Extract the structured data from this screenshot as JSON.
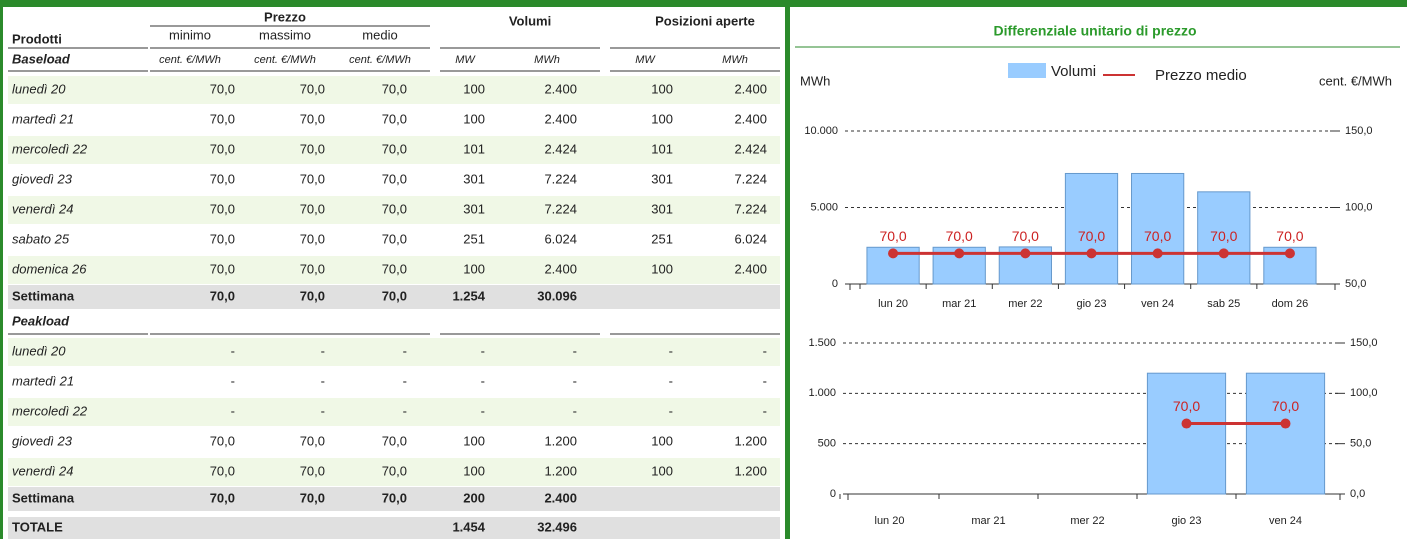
{
  "panel_title": "Differenziale unitario di prezzo",
  "table": {
    "headers": {
      "products": "Prodotti",
      "price": "Prezzo",
      "min": "minimo",
      "max": "massimo",
      "avg": "medio",
      "volumes": "Volumi",
      "open": "Posizioni aperte"
    },
    "units": [
      "cent. €/MWh",
      "cent. €/MWh",
      "cent. €/MWh",
      "MW",
      "MWh",
      "MW",
      "MWh"
    ],
    "sections": [
      {
        "name": "Baseload",
        "rows": [
          [
            "lunedì 20",
            "70,0",
            "70,0",
            "70,0",
            "100",
            "2.400",
            "100",
            "2.400"
          ],
          [
            "martedì 21",
            "70,0",
            "70,0",
            "70,0",
            "100",
            "2.400",
            "100",
            "2.400"
          ],
          [
            "mercoledì 22",
            "70,0",
            "70,0",
            "70,0",
            "101",
            "2.424",
            "101",
            "2.424"
          ],
          [
            "giovedì 23",
            "70,0",
            "70,0",
            "70,0",
            "301",
            "7.224",
            "301",
            "7.224"
          ],
          [
            "venerdì 24",
            "70,0",
            "70,0",
            "70,0",
            "301",
            "7.224",
            "301",
            "7.224"
          ],
          [
            "sabato 25",
            "70,0",
            "70,0",
            "70,0",
            "251",
            "6.024",
            "251",
            "6.024"
          ],
          [
            "domenica 26",
            "70,0",
            "70,0",
            "70,0",
            "100",
            "2.400",
            "100",
            "2.400"
          ]
        ],
        "total": [
          "Settimana",
          "70,0",
          "70,0",
          "70,0",
          "1.254",
          "30.096"
        ]
      },
      {
        "name": "Peakload",
        "rows": [
          [
            "lunedì 20",
            "-",
            "-",
            "-",
            "-",
            "-",
            "-",
            "-"
          ],
          [
            "martedì 21",
            "-",
            "-",
            "-",
            "-",
            "-",
            "-",
            "-"
          ],
          [
            "mercoledì 22",
            "-",
            "-",
            "-",
            "-",
            "-",
            "-",
            "-"
          ],
          [
            "giovedì 23",
            "70,0",
            "70,0",
            "70,0",
            "100",
            "1.200",
            "100",
            "1.200"
          ],
          [
            "venerdì 24",
            "70,0",
            "70,0",
            "70,0",
            "100",
            "1.200",
            "100",
            "1.200"
          ]
        ],
        "total": [
          "Settimana",
          "70,0",
          "70,0",
          "70,0",
          "200",
          "2.400"
        ]
      }
    ],
    "grand_total": [
      "TOTALE",
      "",
      "",
      "",
      "1.454",
      "32.496"
    ]
  },
  "chart_data": [
    {
      "type": "bar",
      "y_label": "MWh",
      "y2_label": "cent. €/MWh",
      "legend": true,
      "categories": [
        "lun 20",
        "mar 21",
        "mer 22",
        "gio 23",
        "ven 24",
        "sab 25",
        "dom 26"
      ],
      "series": [
        {
          "name": "Volumi",
          "color": "#99ccff",
          "values": [
            2400,
            2400,
            2424,
            7224,
            7224,
            6024,
            2400
          ]
        },
        {
          "name": "Prezzo medio",
          "type": "line",
          "axis": "y2",
          "color": "#cc3333",
          "values": [
            70,
            70,
            70,
            70,
            70,
            70,
            70
          ],
          "value_labels": [
            "70,0",
            "70,0",
            "70,0",
            "70,0",
            "70,0",
            "70,0",
            "70,0"
          ]
        }
      ],
      "ylim": [
        0,
        10000
      ],
      "yticks": [
        0,
        {
          "value": 5000,
          "label": "5.000"
        },
        {
          "value": 10000,
          "label": "10.000"
        }
      ],
      "y2lim": [
        50,
        150
      ],
      "y2ticks": [
        {
          "value": 50,
          "label": "50,0"
        },
        {
          "value": 100,
          "label": "100,0"
        },
        {
          "value": 150,
          "label": "150,0"
        }
      ],
      "grid": true
    },
    {
      "type": "bar",
      "legend": false,
      "categories": [
        "lun 20",
        "mar 21",
        "mer 22",
        "gio 23",
        "ven 24"
      ],
      "series": [
        {
          "color": "#99ccff",
          "values": [
            null,
            null,
            null,
            1200,
            1200
          ]
        },
        {
          "type": "line",
          "axis": "y2",
          "color": "#cc3333",
          "values": [
            null,
            null,
            null,
            70,
            70
          ],
          "value_labels": [
            null,
            null,
            null,
            "70,0",
            "70,0"
          ]
        }
      ],
      "ylim": [
        0,
        1500
      ],
      "yticks": [
        0,
        500,
        {
          "value": 1000,
          "label": "1.000"
        },
        {
          "value": 1500,
          "label": "1.500"
        }
      ],
      "y2lim": [
        0,
        150
      ],
      "y2ticks": [
        {
          "value": 0,
          "label": "0,0"
        },
        {
          "value": 50,
          "label": "50,0"
        },
        {
          "value": 100,
          "label": "100,0"
        },
        {
          "value": 150,
          "label": "150,0"
        }
      ],
      "grid": true
    }
  ]
}
